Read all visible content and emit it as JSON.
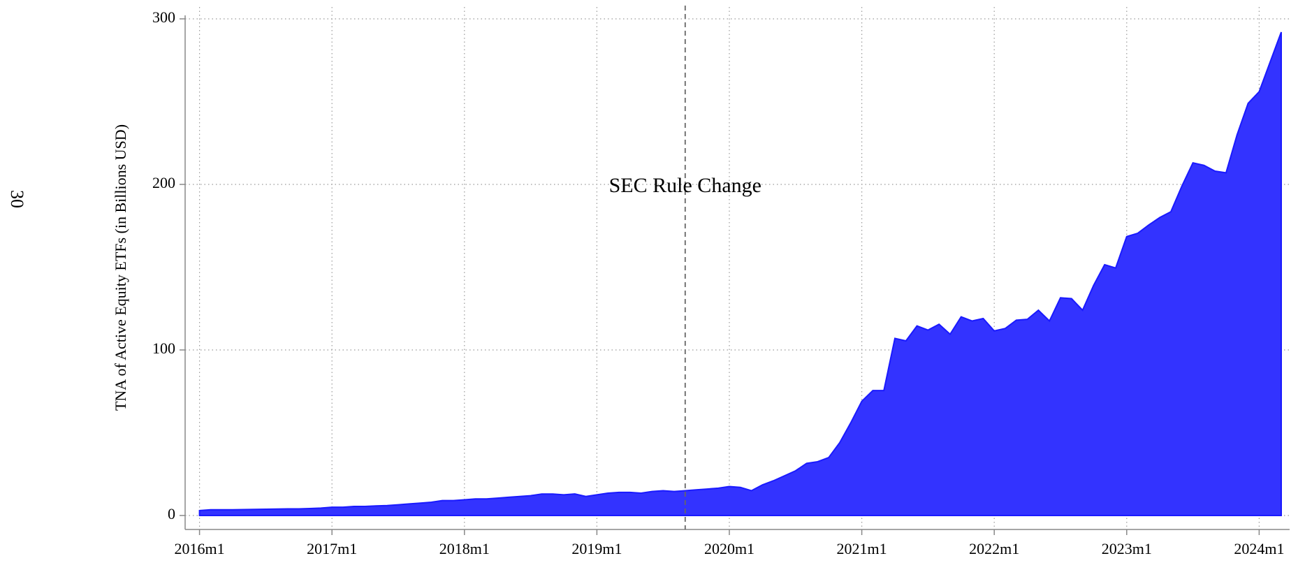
{
  "page_number": "30",
  "chart_data": {
    "type": "area",
    "y_label": "TNA of Active Equity ETFs (in Billions USD)",
    "x": [
      "2016m1",
      "2016m2",
      "2016m3",
      "2016m4",
      "2016m5",
      "2016m6",
      "2016m7",
      "2016m8",
      "2016m9",
      "2016m10",
      "2016m11",
      "2016m12",
      "2017m1",
      "2017m2",
      "2017m3",
      "2017m4",
      "2017m5",
      "2017m6",
      "2017m7",
      "2017m8",
      "2017m9",
      "2017m10",
      "2017m11",
      "2017m12",
      "2018m1",
      "2018m2",
      "2018m3",
      "2018m4",
      "2018m5",
      "2018m6",
      "2018m7",
      "2018m8",
      "2018m9",
      "2018m10",
      "2018m11",
      "2018m12",
      "2019m1",
      "2019m2",
      "2019m3",
      "2019m4",
      "2019m5",
      "2019m6",
      "2019m7",
      "2019m8",
      "2019m9",
      "2019m10",
      "2019m11",
      "2019m12",
      "2020m1",
      "2020m2",
      "2020m3",
      "2020m4",
      "2020m5",
      "2020m6",
      "2020m7",
      "2020m8",
      "2020m9",
      "2020m10",
      "2020m11",
      "2020m12",
      "2021m1",
      "2021m2",
      "2021m3",
      "2021m4",
      "2021m5",
      "2021m6",
      "2021m7",
      "2021m8",
      "2021m9",
      "2021m10",
      "2021m11",
      "2021m12",
      "2022m1",
      "2022m2",
      "2022m3",
      "2022m4",
      "2022m5",
      "2022m6",
      "2022m7",
      "2022m8",
      "2022m9",
      "2022m10",
      "2022m11",
      "2022m12",
      "2023m1",
      "2023m2",
      "2023m3",
      "2023m4",
      "2023m5",
      "2023m6",
      "2023m7",
      "2023m8",
      "2023m9",
      "2023m10",
      "2023m11",
      "2023m12",
      "2024m1",
      "2024m2",
      "2024m3"
    ],
    "values": [
      3,
      3.5,
      3.5,
      3.5,
      3.6,
      3.7,
      3.8,
      3.9,
      4,
      4,
      4.2,
      4.5,
      5,
      5,
      5.5,
      5.5,
      5.8,
      6,
      6.5,
      7,
      7.5,
      8,
      9,
      9,
      9.5,
      10,
      10,
      10.5,
      11,
      11.5,
      12,
      13,
      13,
      12.5,
      13,
      11.5,
      12.5,
      13.5,
      14,
      14,
      13.5,
      14.5,
      15,
      14.5,
      15,
      15.5,
      16,
      16.5,
      17.5,
      17,
      15,
      18.5,
      21,
      24,
      27,
      31.5,
      32.5,
      35,
      44,
      56,
      69,
      75.5,
      75.5,
      107,
      105.5,
      114.5,
      112,
      115.5,
      109.5,
      120,
      117.5,
      119,
      111.5,
      113,
      118,
      118.5,
      124,
      117.5,
      131.5,
      131,
      124,
      139,
      151.5,
      149.5,
      168.5,
      170.5,
      175.5,
      180,
      183.5,
      199,
      213,
      211.5,
      208,
      207,
      230,
      249,
      256,
      274,
      292
    ],
    "color": "#3333ff",
    "ylim": [
      0,
      300
    ],
    "yticks": [
      0,
      100,
      200,
      300
    ],
    "xticks": [
      "2016m1",
      "2017m1",
      "2018m1",
      "2019m1",
      "2020m1",
      "2021m1",
      "2022m1",
      "2023m1",
      "2024m1"
    ],
    "grid": true,
    "annotation": {
      "text": "SEC Rule Change",
      "x": "2019m9"
    }
  }
}
